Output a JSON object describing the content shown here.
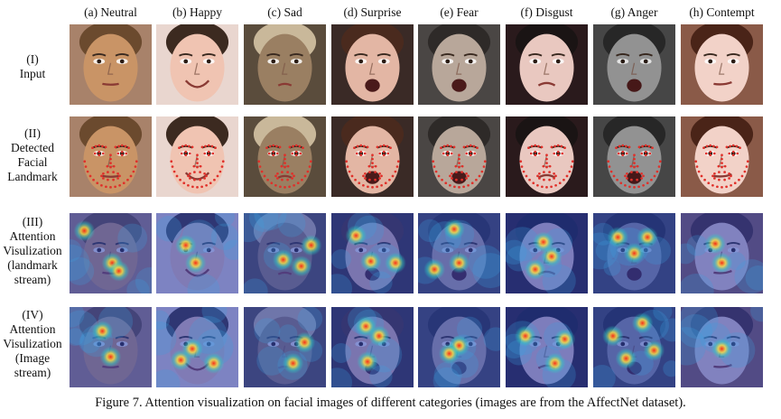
{
  "columns": [
    {
      "label": "(a) Neutral",
      "skin": "#c99466",
      "bg": "#a8826a",
      "hair": "#6b4a2e"
    },
    {
      "label": "(b) Happy",
      "skin": "#f0c4b2",
      "bg": "#e9d6cf",
      "hair": "#3c2a20"
    },
    {
      "label": "(c) Sad",
      "skin": "#9a7f62",
      "bg": "#5a4c3c",
      "hair": "#c9b89a"
    },
    {
      "label": "(d) Surprise",
      "skin": "#e3b6a4",
      "bg": "#3a2a26",
      "hair": "#4a2a1e"
    },
    {
      "label": "(e) Fear",
      "skin": "#b8a79a",
      "bg": "#4a4644",
      "hair": "#2e2a28"
    },
    {
      "label": "(f) Disgust",
      "skin": "#e9c8c0",
      "bg": "#2a1a1c",
      "hair": "#1a1414"
    },
    {
      "label": "(g) Anger",
      "skin": "#9a9a9a",
      "bg": "#4a4a4a",
      "hair": "#2a2a2a"
    },
    {
      "label": "(h) Contempt",
      "skin": "#f2d2c8",
      "bg": "#8a5a48",
      "hair": "#4a2418"
    }
  ],
  "rows": [
    {
      "type": "input",
      "label_lines": [
        "(I)",
        "Input"
      ]
    },
    {
      "type": "landmark",
      "label_lines": [
        "(II)",
        "Detected",
        "Facial",
        "Landmark"
      ]
    },
    {
      "type": "attn_lm",
      "label_lines": [
        "(III)",
        "Attention",
        "Visulization",
        "(landmark",
        "stream)"
      ]
    },
    {
      "type": "attn_img",
      "label_lines": [
        "(IV)",
        "Attention",
        "Visulization",
        "(Image",
        "stream)"
      ]
    }
  ],
  "caption": "Figure 7. Attention visualization on facial images of different categories (images are from the AffectNet dataset).",
  "colors": {
    "landmark": "#e0302a",
    "heat_base": "#2440b8",
    "heat_hot": "#ff2a10",
    "heat_warm": "#ffe040"
  }
}
